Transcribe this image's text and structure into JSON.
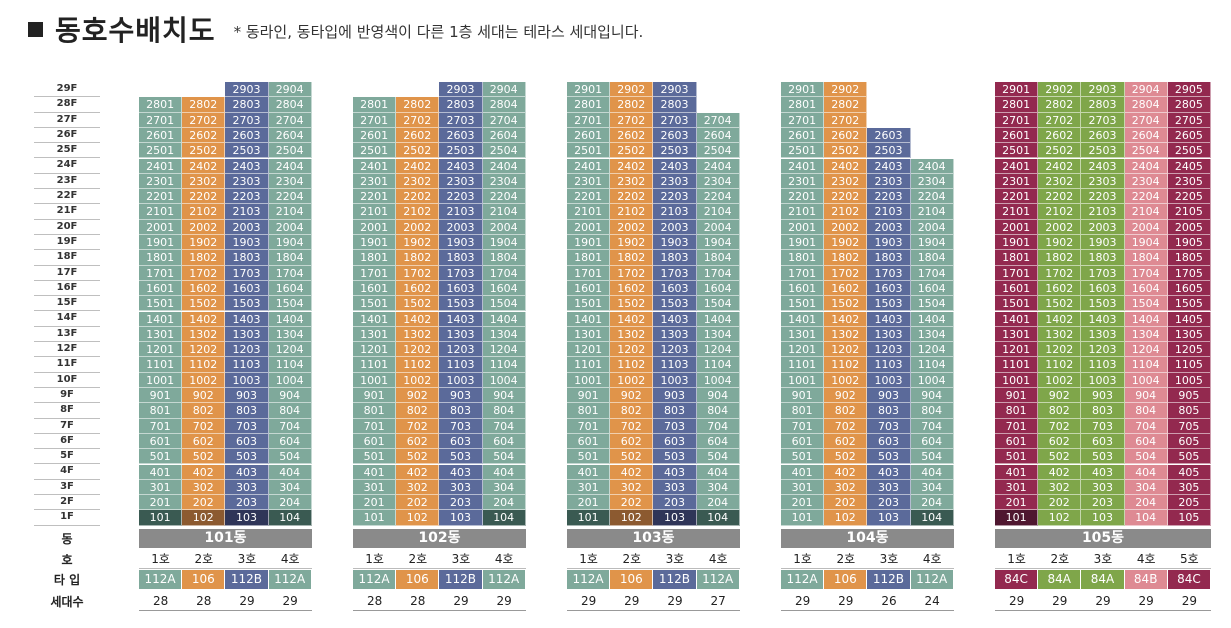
{
  "header": {
    "title": "동호수배치도",
    "note": "* 동라인, 동타입에 반영색이 다른 1층 세대는 테라스 세대입니다."
  },
  "floor_labels": [
    "29F",
    "28F",
    "27F",
    "26F",
    "25F",
    "24F",
    "23F",
    "22F",
    "21F",
    "20F",
    "19F",
    "18F",
    "17F",
    "16F",
    "15F",
    "14F",
    "13F",
    "12F",
    "11F",
    "10F",
    "9F",
    "8F",
    "7F",
    "6F",
    "5F",
    "4F",
    "3F",
    "2F",
    "1F"
  ],
  "row_labels": {
    "dong": "동",
    "ho": "호",
    "type": "타 입",
    "count": "세대수"
  },
  "colors": {
    "112A": "#7fa99b",
    "106": "#e0944a",
    "112B": "#5b6a9a",
    "84C": "#93294f",
    "84A": "#7fa64a",
    "84B": "#de8a93",
    "terrace_112A": "#3a5a52",
    "terrace_106": "#8c5a30",
    "terrace_112B": "#2f3558",
    "terrace_84C": "#4f1730",
    "terrace_84A": "#4d6a2b",
    "terrace_84B": "#a85a62"
  },
  "buildings": [
    {
      "name": "101동",
      "ho": [
        "1호",
        "2호",
        "3호",
        "4호"
      ],
      "types": [
        "112A",
        "106",
        "112B",
        "112A"
      ],
      "counts": [
        "28",
        "28",
        "29",
        "29"
      ],
      "top": [
        28,
        28,
        29,
        29
      ],
      "terrace": [
        1,
        1,
        1,
        1
      ]
    },
    {
      "name": "102동",
      "ho": [
        "1호",
        "2호",
        "3호",
        "4호"
      ],
      "types": [
        "112A",
        "106",
        "112B",
        "112A"
      ],
      "counts": [
        "28",
        "28",
        "29",
        "29"
      ],
      "top": [
        28,
        28,
        29,
        29
      ],
      "terrace": [
        0,
        0,
        0,
        1
      ]
    },
    {
      "name": "103동",
      "ho": [
        "1호",
        "2호",
        "3호",
        "4호"
      ],
      "types": [
        "112A",
        "106",
        "112B",
        "112A"
      ],
      "counts": [
        "29",
        "29",
        "29",
        "27"
      ],
      "top": [
        29,
        29,
        29,
        27
      ],
      "terrace": [
        1,
        1,
        1,
        1
      ]
    },
    {
      "name": "104동",
      "ho": [
        "1호",
        "2호",
        "3호",
        "4호"
      ],
      "types": [
        "112A",
        "106",
        "112B",
        "112A"
      ],
      "counts": [
        "29",
        "29",
        "26",
        "24"
      ],
      "top": [
        29,
        29,
        26,
        24
      ],
      "terrace": [
        0,
        0,
        0,
        1
      ]
    },
    {
      "name": "105동",
      "ho": [
        "1호",
        "2호",
        "3호",
        "4호",
        "5호"
      ],
      "types": [
        "84C",
        "84A",
        "84A",
        "84B",
        "84C"
      ],
      "counts": [
        "29",
        "29",
        "29",
        "29",
        "29"
      ],
      "top": [
        29,
        29,
        29,
        29,
        29
      ],
      "terrace": [
        1,
        0,
        0,
        0,
        0
      ]
    }
  ]
}
